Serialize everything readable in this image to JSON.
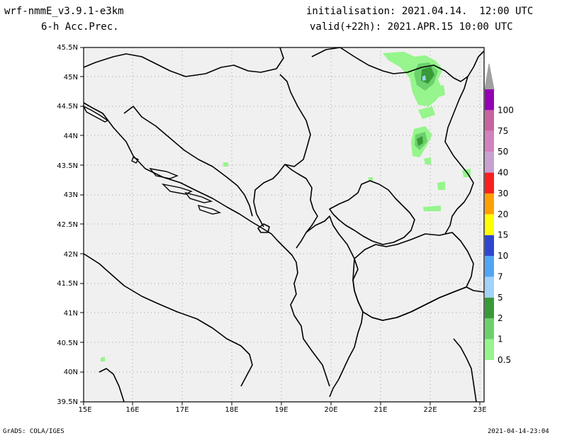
{
  "header": {
    "model": "wrf-nmmE_v3.9.1-e3km",
    "field": "6-h Acc.Prec.",
    "init": "initialisation: 2021.04.14.  12:00 UTC",
    "valid": "valid(+22h): 2021.APR.15 10:00 UTC"
  },
  "footer": {
    "credit": "GrADS: COLA/IGES",
    "timestamp": "2021-04-14-23:04"
  },
  "map": {
    "lat_labels": [
      "45.5N",
      "45N",
      "44.5N",
      "44N",
      "43.5N",
      "43N",
      "42.5N",
      "42N",
      "41.5N",
      "41N",
      "40.5N",
      "40N",
      "39.5N"
    ],
    "lon_labels": [
      "15E",
      "16E",
      "17E",
      "18E",
      "19E",
      "20E",
      "21E",
      "22E",
      "23E"
    ],
    "colors": {
      "background": "#f0f0f0",
      "land_border": "#000000",
      "grid": "#a0a0a0"
    }
  },
  "colorbar": {
    "levels": [
      "0.5",
      "1",
      "2",
      "5",
      "7",
      "10",
      "15",
      "20",
      "30",
      "40",
      "50",
      "75",
      "100"
    ],
    "colors": [
      "#96f58c",
      "#6cd16c",
      "#379a37",
      "#a0d2fa",
      "#50a5f5",
      "#2d46d2",
      "#ffff00",
      "#ffa000",
      "#fa1e1e",
      "#c8a0d2",
      "#d282be",
      "#c864a0",
      "#9600b4"
    ]
  }
}
